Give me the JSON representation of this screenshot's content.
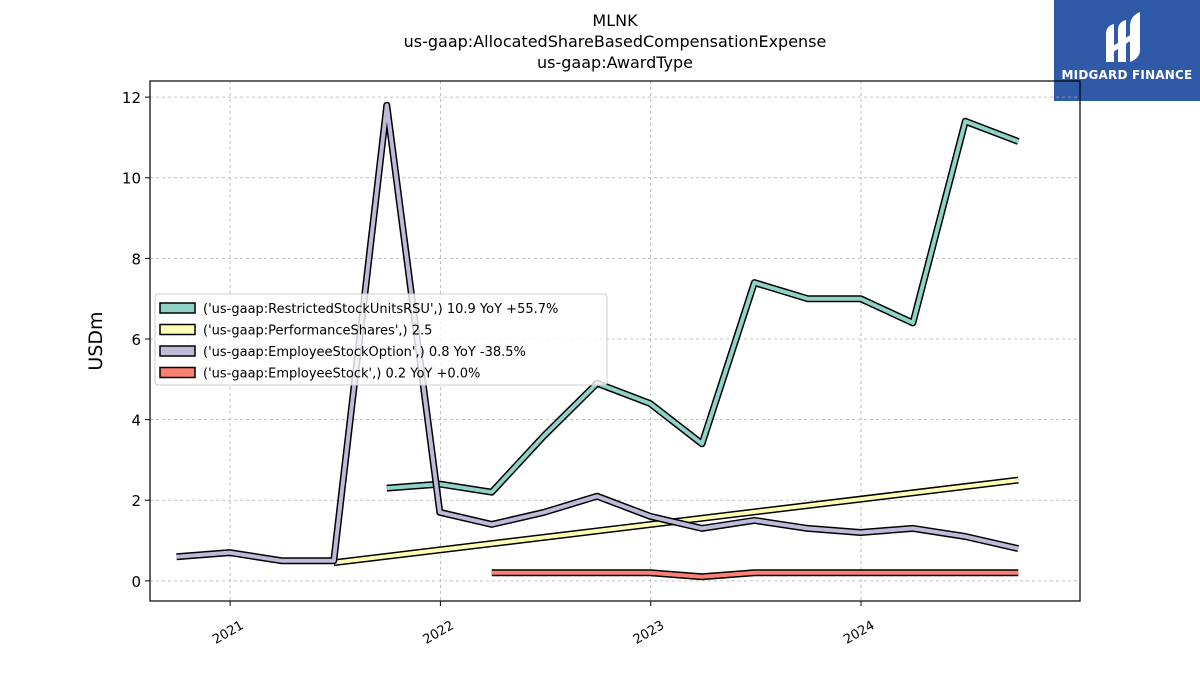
{
  "chart_data": {
    "type": "line",
    "title_lines": [
      "MLNK",
      "us-gaap:AllocatedShareBasedCompensationExpense",
      "us-gaap:AwardType"
    ],
    "ylabel": "USDm",
    "xlabel": "",
    "ylim": [
      -0.5,
      12.4
    ],
    "xlim": [
      "2020-08-15",
      "2025-01-15"
    ],
    "yticks": [
      0,
      2,
      4,
      6,
      8,
      10,
      12
    ],
    "xticks": [
      "2021",
      "2022",
      "2023",
      "2024"
    ],
    "grid": true,
    "legend_position": "center-left",
    "series": [
      {
        "name": "('us-gaap:RestrictedStockUnitsRSU',) 10.9 YoY +55.7%",
        "color": "#8dd3c7",
        "points": [
          [
            "2021-09-30",
            2.3
          ],
          [
            "2021-12-31",
            2.4
          ],
          [
            "2022-03-31",
            2.2
          ],
          [
            "2022-06-30",
            3.6
          ],
          [
            "2022-09-30",
            4.9
          ],
          [
            "2022-12-31",
            4.4
          ],
          [
            "2023-03-31",
            3.4
          ],
          [
            "2023-06-30",
            7.4
          ],
          [
            "2023-09-30",
            7.0
          ],
          [
            "2023-12-31",
            7.0
          ],
          [
            "2024-03-31",
            6.4
          ],
          [
            "2024-06-30",
            11.4
          ],
          [
            "2024-09-30",
            10.9
          ]
        ]
      },
      {
        "name": "('us-gaap:PerformanceShares',) 2.5",
        "color": "#ffffb3",
        "points": [
          [
            "2021-06-30",
            0.45
          ],
          [
            "2024-09-30",
            2.5
          ]
        ]
      },
      {
        "name": "('us-gaap:EmployeeStockOption',) 0.8 YoY -38.5%",
        "color": "#bebada",
        "points": [
          [
            "2020-09-30",
            0.6
          ],
          [
            "2020-12-31",
            0.7
          ],
          [
            "2021-03-31",
            0.5
          ],
          [
            "2021-06-30",
            0.5
          ],
          [
            "2021-09-30",
            11.8
          ],
          [
            "2021-12-31",
            1.7
          ],
          [
            "2022-03-31",
            1.4
          ],
          [
            "2022-06-30",
            1.7
          ],
          [
            "2022-09-30",
            2.1
          ],
          [
            "2022-12-31",
            1.6
          ],
          [
            "2023-03-31",
            1.3
          ],
          [
            "2023-06-30",
            1.5
          ],
          [
            "2023-09-30",
            1.3
          ],
          [
            "2023-12-31",
            1.2
          ],
          [
            "2024-03-31",
            1.3
          ],
          [
            "2024-06-30",
            1.1
          ],
          [
            "2024-09-30",
            0.8
          ]
        ]
      },
      {
        "name": "('us-gaap:EmployeeStock',) 0.2 YoY +0.0%",
        "color": "#fb8072",
        "points": [
          [
            "2022-03-31",
            0.2
          ],
          [
            "2022-06-30",
            0.2
          ],
          [
            "2022-09-30",
            0.2
          ],
          [
            "2022-12-31",
            0.2
          ],
          [
            "2023-03-31",
            0.1
          ],
          [
            "2023-06-30",
            0.2
          ],
          [
            "2023-09-30",
            0.2
          ],
          [
            "2023-12-31",
            0.2
          ],
          [
            "2024-03-31",
            0.2
          ],
          [
            "2024-06-30",
            0.2
          ],
          [
            "2024-09-30",
            0.2
          ]
        ]
      }
    ]
  },
  "logo": {
    "text": "MIDGARD FINANCE",
    "bg_color": "#2f5aa8"
  }
}
